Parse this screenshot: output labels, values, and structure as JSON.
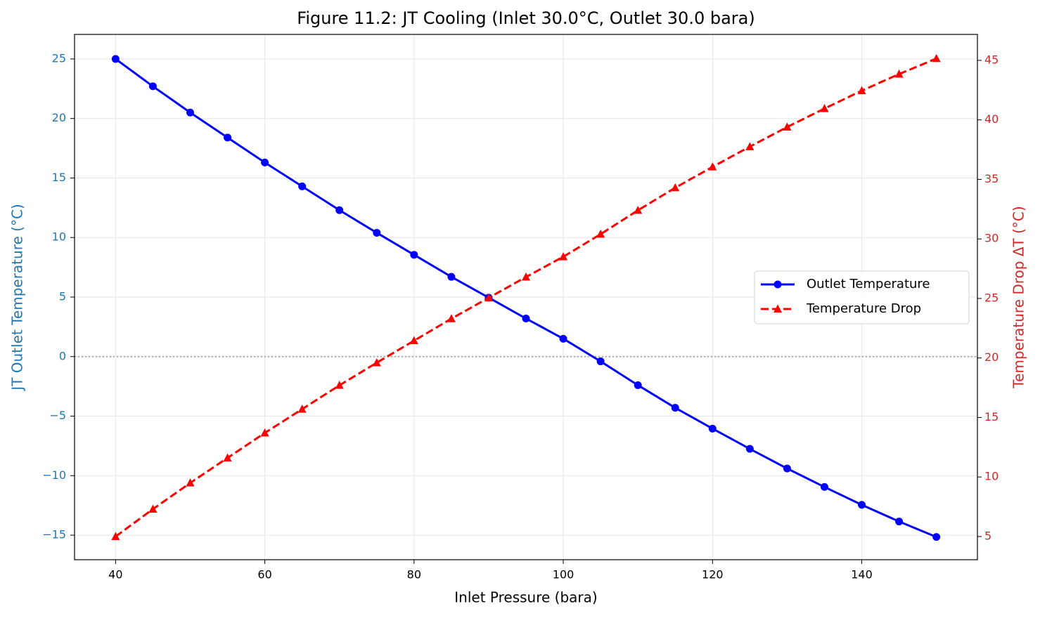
{
  "chart_data": {
    "type": "line",
    "title": "Figure 11.2: JT Cooling (Inlet 30.0°C, Outlet 30.0 bara)",
    "x_label": "Inlet Pressure (bara)",
    "y_label": "JT Outlet Temperature (°C)",
    "y2_label": "Temperature Drop ΔT (°C)",
    "x": [
      40,
      45,
      50,
      55,
      60,
      65,
      70,
      75,
      80,
      85,
      90,
      95,
      100,
      105,
      110,
      115,
      120,
      125,
      130,
      135,
      140,
      145,
      150
    ],
    "series": [
      {
        "name": "Outlet Temperature",
        "color": "#0000ff",
        "linestyle": "solid",
        "marker": "circle",
        "axis": "y",
        "values": [
          25,
          22.7,
          20.5,
          18.4,
          16.3,
          14.3,
          12.3,
          10.4,
          8.55,
          6.7,
          4.95,
          3.2,
          1.5,
          -0.4,
          -2.4,
          -4.3,
          -6.05,
          -7.75,
          -9.4,
          -10.95,
          -12.45,
          -13.85,
          -15.15
        ]
      },
      {
        "name": "Temperature Drop",
        "color": "#ff0000",
        "linestyle": "dashed",
        "marker": "triangle",
        "axis": "y2",
        "values": [
          5,
          7.3,
          9.5,
          11.6,
          13.7,
          15.7,
          17.7,
          19.6,
          21.45,
          23.3,
          25.05,
          26.8,
          28.5,
          30.4,
          32.4,
          34.3,
          36.05,
          37.75,
          39.4,
          40.95,
          42.45,
          43.85,
          45.15
        ]
      }
    ],
    "xlim": [
      34.5,
      155.5
    ],
    "xticks": [
      40,
      60,
      80,
      100,
      120,
      140
    ],
    "ylim": [
      -17.06,
      27.06
    ],
    "yticks": [
      {
        "value": -15,
        "label": "−15"
      },
      {
        "value": -10,
        "label": "−10"
      },
      {
        "value": -5,
        "label": "−5"
      },
      0,
      5,
      10,
      15,
      20,
      25
    ],
    "y2lim": [
      3.05,
      47.18
    ],
    "y2ticks": [
      5,
      10,
      15,
      20,
      25,
      30,
      35,
      40,
      45
    ],
    "y_color": "#1f77b4",
    "y2_color": "#d62728",
    "reference_line": 0,
    "grid": true,
    "legend": "right"
  }
}
